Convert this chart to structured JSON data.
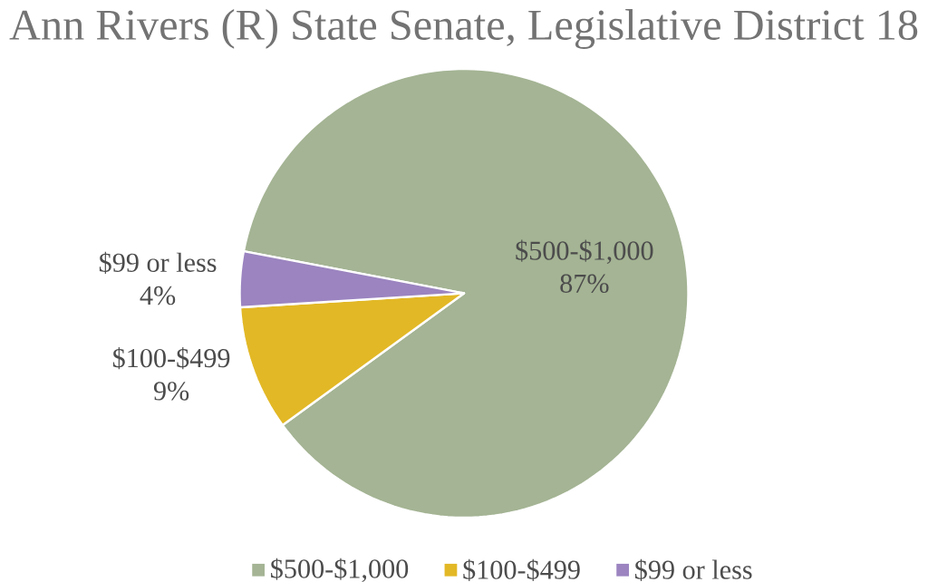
{
  "chart_data": {
    "type": "pie",
    "title": "Ann Rivers (R) State Senate, Legislative District 18",
    "categories": [
      "$500-$1,000",
      "$100-$499",
      "$99 or less"
    ],
    "values": [
      87,
      9,
      4
    ],
    "value_labels": [
      "87%",
      "9%",
      "4%"
    ],
    "colors": [
      "#a4b494",
      "#e2b826",
      "#9b84c0"
    ],
    "legend": "bottom"
  }
}
